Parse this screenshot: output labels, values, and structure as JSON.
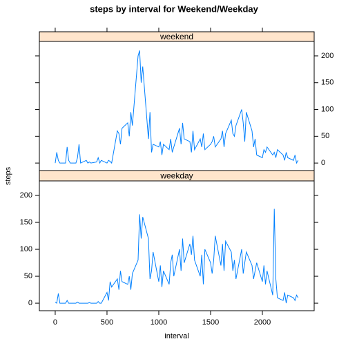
{
  "chart_data": {
    "type": "line",
    "title": "steps by interval for Weekend/Weekday",
    "xlabel": "interval",
    "ylabel": "steps",
    "x": [
      0,
      15,
      30,
      45,
      100,
      115,
      130,
      145,
      200,
      215,
      230,
      245,
      300,
      315,
      330,
      345,
      400,
      415,
      430,
      445,
      500,
      515,
      530,
      545,
      600,
      615,
      630,
      645,
      700,
      715,
      730,
      745,
      800,
      815,
      830,
      845,
      900,
      915,
      930,
      945,
      1000,
      1015,
      1030,
      1045,
      1100,
      1115,
      1130,
      1145,
      1200,
      1215,
      1230,
      1245,
      1300,
      1315,
      1330,
      1345,
      1400,
      1415,
      1430,
      1445,
      1500,
      1515,
      1530,
      1545,
      1600,
      1615,
      1630,
      1645,
      1700,
      1715,
      1730,
      1745,
      1800,
      1815,
      1830,
      1845,
      1900,
      1915,
      1930,
      1945,
      2000,
      2015,
      2030,
      2045,
      2100,
      2115,
      2130,
      2145,
      2200,
      2215,
      2230,
      2245,
      2300,
      2315,
      2330,
      2345
    ],
    "series": [
      {
        "name": "weekend",
        "color": "#0080ff",
        "values": [
          0,
          20,
          5,
          0,
          0,
          30,
          5,
          0,
          0,
          10,
          35,
          0,
          5,
          0,
          2,
          0,
          2,
          10,
          0,
          5,
          0,
          5,
          3,
          0,
          60,
          55,
          35,
          65,
          75,
          50,
          95,
          70,
          200,
          210,
          150,
          180,
          45,
          95,
          20,
          35,
          30,
          40,
          15,
          35,
          25,
          45,
          20,
          30,
          65,
          35,
          75,
          45,
          40,
          20,
          60,
          25,
          45,
          30,
          55,
          25,
          35,
          40,
          50,
          30,
          45,
          60,
          30,
          55,
          80,
          55,
          50,
          70,
          100,
          75,
          40,
          95,
          60,
          30,
          45,
          15,
          10,
          25,
          20,
          30,
          15,
          20,
          10,
          25,
          15,
          5,
          20,
          10,
          5,
          15,
          0,
          5
        ]
      },
      {
        "name": "weekday",
        "color": "#0080ff",
        "values": [
          2,
          0,
          18,
          0,
          0,
          5,
          0,
          0,
          0,
          2,
          0,
          0,
          0,
          0,
          1,
          0,
          0,
          3,
          0,
          0,
          20,
          5,
          40,
          30,
          45,
          25,
          60,
          40,
          35,
          50,
          25,
          55,
          80,
          165,
          120,
          160,
          120,
          45,
          60,
          95,
          40,
          70,
          30,
          60,
          35,
          75,
          90,
          50,
          100,
          60,
          120,
          75,
          110,
          90,
          125,
          80,
          50,
          90,
          35,
          100,
          75,
          55,
          80,
          125,
          70,
          110,
          60,
          115,
          95,
          60,
          80,
          45,
          100,
          55,
          75,
          95,
          70,
          45,
          60,
          75,
          40,
          70,
          35,
          60,
          15,
          175,
          45,
          10,
          5,
          20,
          0,
          15,
          10,
          5,
          15,
          10
        ]
      }
    ],
    "xlim": [
      -153,
      2500
    ],
    "xticks": [
      0,
      500,
      1000,
      1500,
      2000
    ],
    "ylim": [
      -14,
      227
    ],
    "yticks": [
      0,
      50,
      100,
      150,
      200
    ],
    "strip_color": "#ffe5cc"
  }
}
